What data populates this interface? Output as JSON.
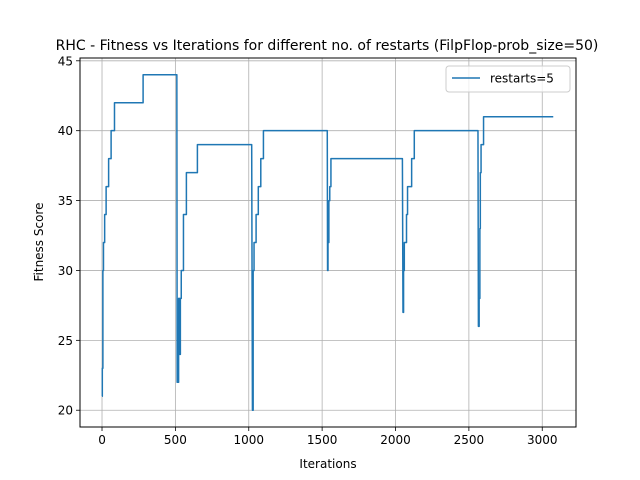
{
  "chart_data": {
    "type": "line",
    "title": "RHC - Fitness vs Iterations for different no. of restarts (FilpFlop-prob_size=50)",
    "xlabel": "Iterations",
    "ylabel": "Fitness Score",
    "xlim": [
      -150,
      3230
    ],
    "ylim": [
      18.8,
      45.2
    ],
    "xticks": [
      0,
      500,
      1000,
      1500,
      2000,
      2500,
      3000
    ],
    "yticks": [
      20,
      25,
      30,
      35,
      40,
      45
    ],
    "grid": true,
    "legend_position": "top-right",
    "series": [
      {
        "name": "restarts=5",
        "color": "#1f77b4",
        "points": [
          [
            0,
            21
          ],
          [
            2,
            21
          ],
          [
            2,
            23
          ],
          [
            6,
            23
          ],
          [
            6,
            30
          ],
          [
            10,
            30
          ],
          [
            10,
            32
          ],
          [
            18,
            32
          ],
          [
            18,
            34
          ],
          [
            28,
            34
          ],
          [
            28,
            36
          ],
          [
            45,
            36
          ],
          [
            45,
            38
          ],
          [
            62,
            38
          ],
          [
            62,
            40
          ],
          [
            85,
            40
          ],
          [
            85,
            42
          ],
          [
            280,
            42
          ],
          [
            280,
            44
          ],
          [
            510,
            44
          ],
          [
            512,
            22
          ],
          [
            522,
            22
          ],
          [
            522,
            28
          ],
          [
            528,
            28
          ],
          [
            528,
            24
          ],
          [
            534,
            24
          ],
          [
            534,
            28
          ],
          [
            540,
            28
          ],
          [
            540,
            30
          ],
          [
            555,
            30
          ],
          [
            555,
            34
          ],
          [
            575,
            34
          ],
          [
            575,
            37
          ],
          [
            650,
            37
          ],
          [
            650,
            39
          ],
          [
            1020,
            39
          ],
          [
            1025,
            20
          ],
          [
            1030,
            20
          ],
          [
            1030,
            30
          ],
          [
            1036,
            30
          ],
          [
            1036,
            32
          ],
          [
            1050,
            32
          ],
          [
            1050,
            34
          ],
          [
            1065,
            34
          ],
          [
            1065,
            36
          ],
          [
            1082,
            36
          ],
          [
            1082,
            38
          ],
          [
            1100,
            38
          ],
          [
            1100,
            40
          ],
          [
            1535,
            40
          ],
          [
            1537,
            30
          ],
          [
            1540,
            30
          ],
          [
            1540,
            32
          ],
          [
            1546,
            32
          ],
          [
            1546,
            35
          ],
          [
            1552,
            35
          ],
          [
            1552,
            36
          ],
          [
            1560,
            36
          ],
          [
            1560,
            38
          ],
          [
            2047,
            38
          ],
          [
            2051,
            27
          ],
          [
            2055,
            27
          ],
          [
            2055,
            30
          ],
          [
            2060,
            30
          ],
          [
            2060,
            32
          ],
          [
            2075,
            32
          ],
          [
            2075,
            34
          ],
          [
            2082,
            34
          ],
          [
            2082,
            36
          ],
          [
            2110,
            36
          ],
          [
            2110,
            38
          ],
          [
            2128,
            38
          ],
          [
            2128,
            40
          ],
          [
            2562,
            40
          ],
          [
            2565,
            26
          ],
          [
            2570,
            26
          ],
          [
            2570,
            28
          ],
          [
            2575,
            28
          ],
          [
            2575,
            33
          ],
          [
            2578,
            33
          ],
          [
            2578,
            37
          ],
          [
            2583,
            37
          ],
          [
            2583,
            39
          ],
          [
            2600,
            39
          ],
          [
            2600,
            41
          ],
          [
            3075,
            41
          ]
        ]
      }
    ]
  }
}
